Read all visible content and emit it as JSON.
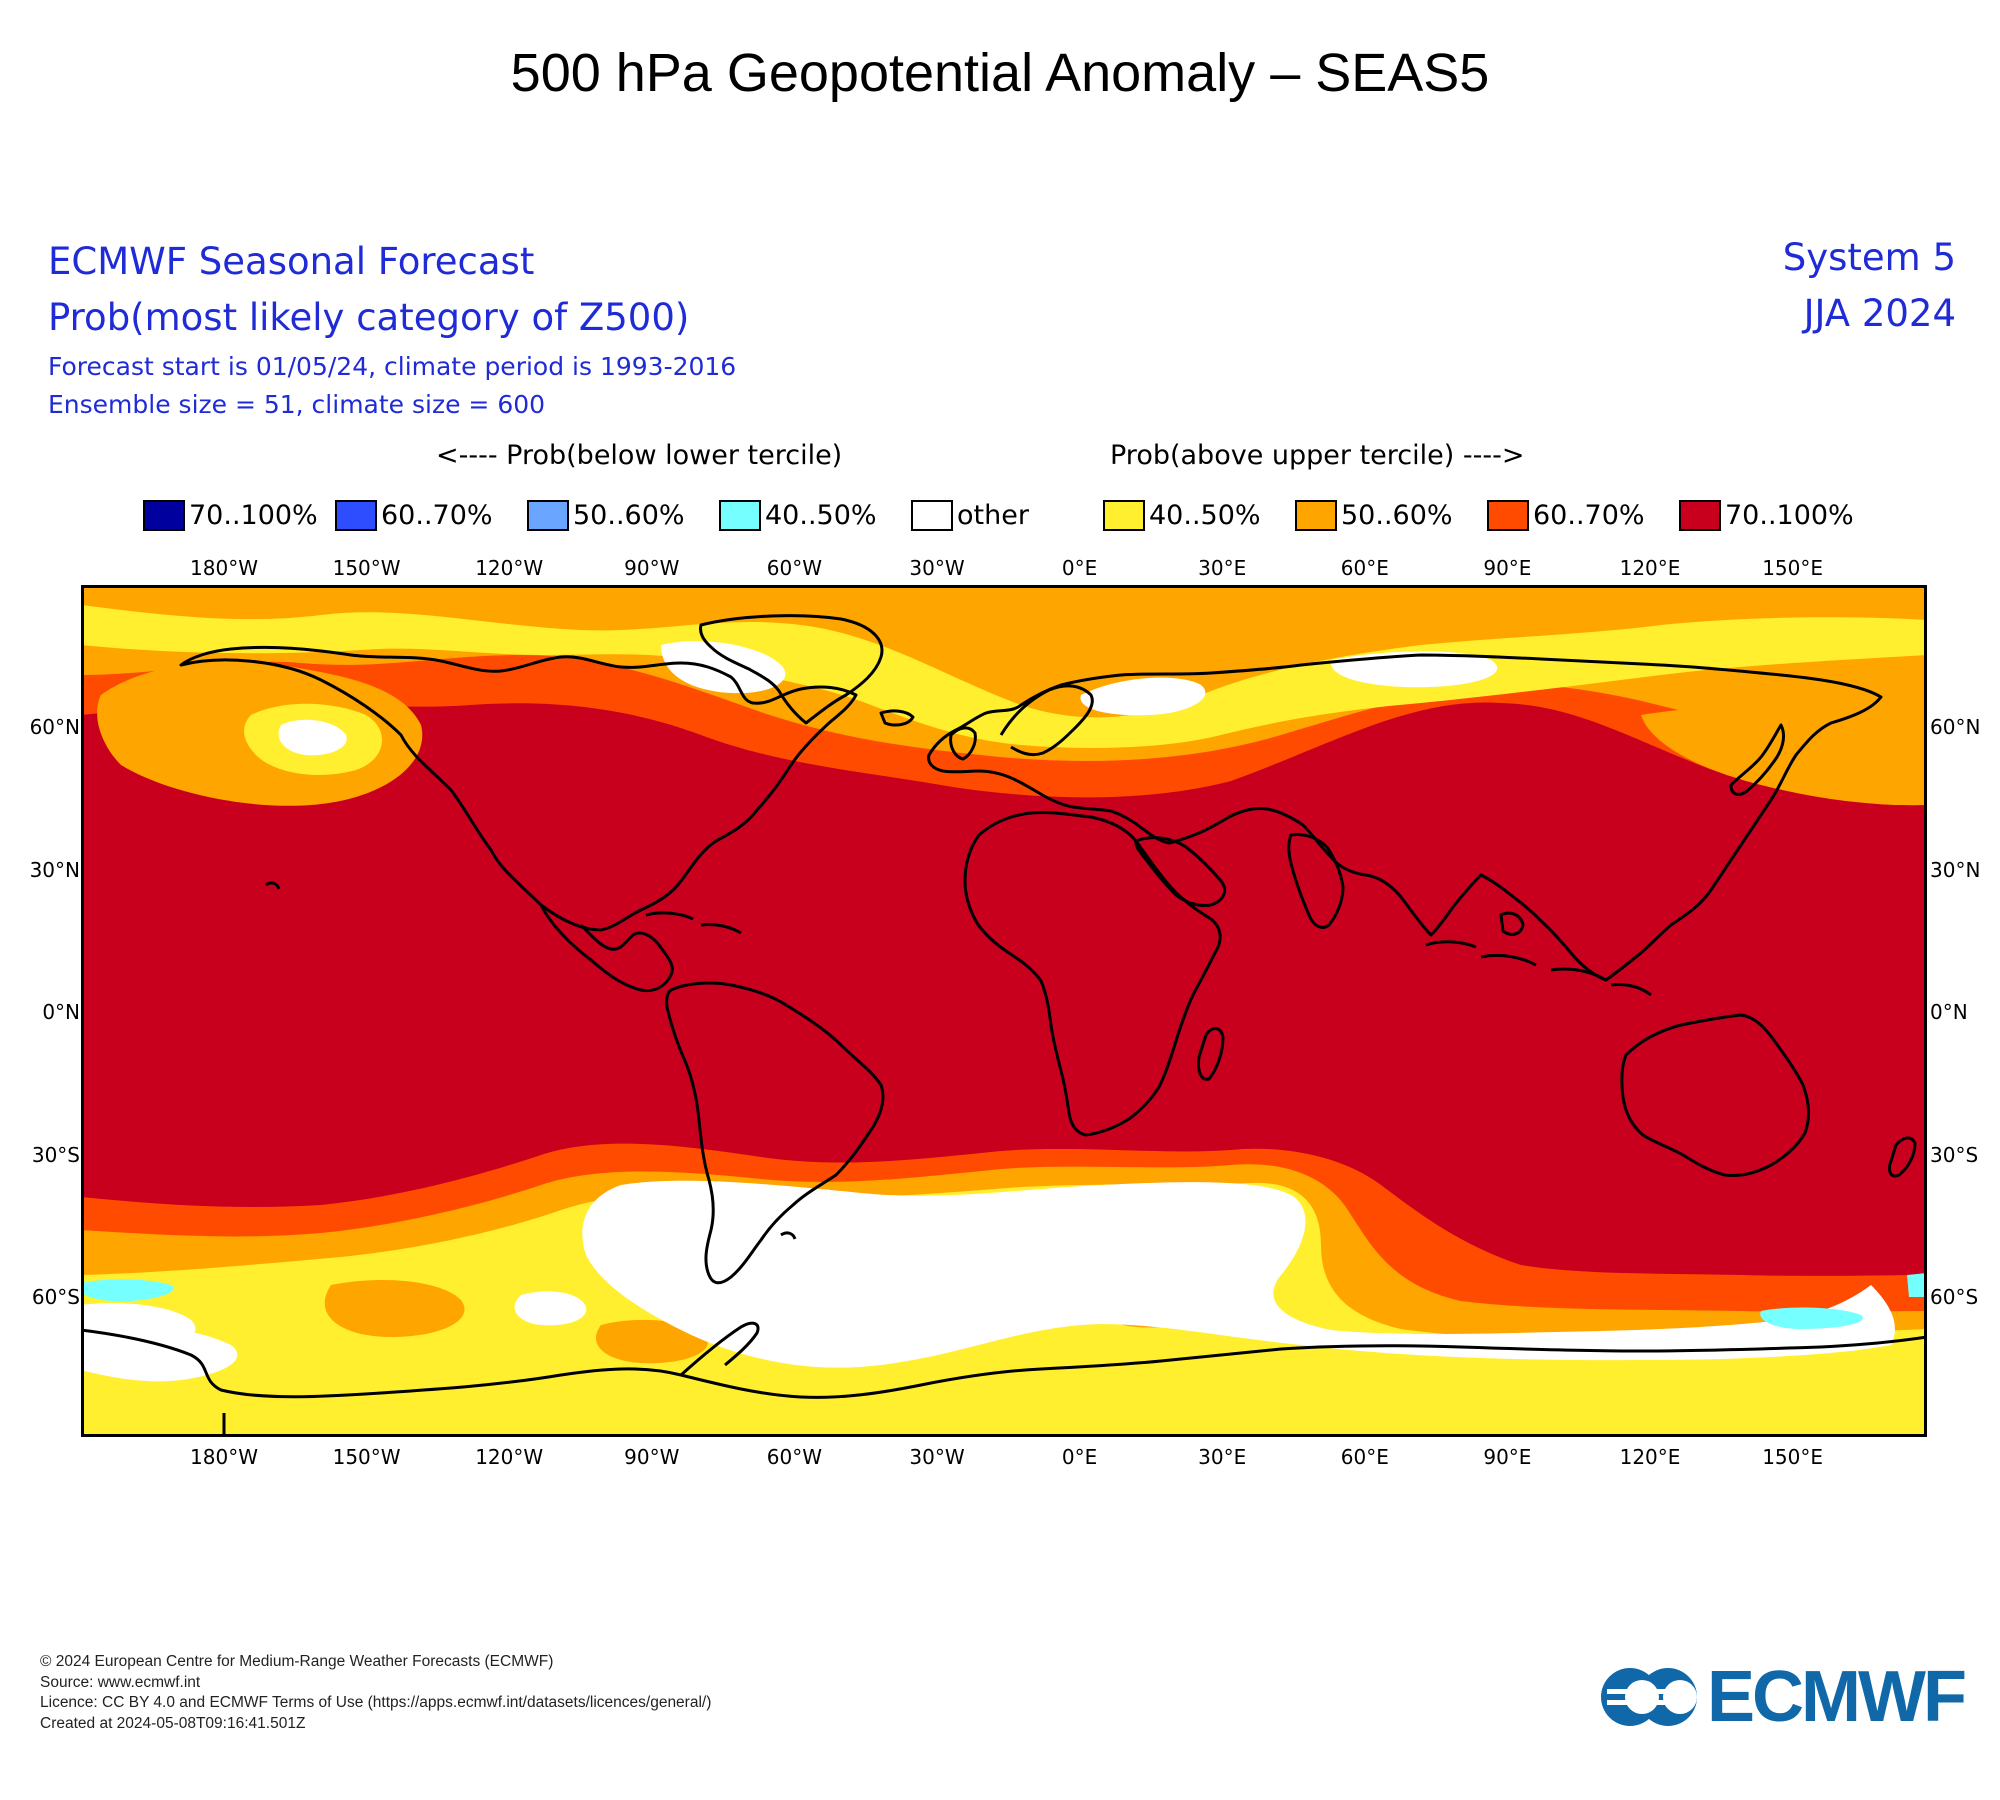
{
  "page_title": "500 hPa Geopotential Anomaly – SEAS5",
  "header": {
    "line1": "ECMWF Seasonal Forecast",
    "line2": "Prob(most likely category of Z500)",
    "line3": "Forecast start is 01/05/24, climate period is 1993-2016",
    "line4": "Ensemble size = 51, climate size = 600",
    "system": "System 5",
    "season": "JJA 2024"
  },
  "legend": {
    "below_caption": "<---- Prob(below lower tercile)",
    "above_caption": "Prob(above upper tercile) ---->",
    "items": [
      {
        "label": "70..100%",
        "color": "#00009e"
      },
      {
        "label": "60..70%",
        "color": "#2d4dff"
      },
      {
        "label": "50..60%",
        "color": "#6aa6ff"
      },
      {
        "label": "40..50%",
        "color": "#75ffff"
      },
      {
        "label": "other",
        "color": "#ffffff"
      },
      {
        "label": "40..50%",
        "color": "#ffef2e"
      },
      {
        "label": "50..60%",
        "color": "#ffa500"
      },
      {
        "label": "60..70%",
        "color": "#ff4b00"
      },
      {
        "label": "70..100%",
        "color": "#c8001e"
      }
    ]
  },
  "map": {
    "lon_labels": [
      "180°W",
      "150°W",
      "120°W",
      "90°W",
      "60°W",
      "30°W",
      "0°E",
      "30°E",
      "60°E",
      "90°E",
      "120°E",
      "150°E"
    ],
    "lat_labels": [
      "60°N",
      "30°N",
      "0°N",
      "30°S",
      "60°S"
    ],
    "colors": {
      "red": "#c8001e",
      "orange_red": "#ff4b00",
      "orange": "#ffa500",
      "yellow": "#ffef2e",
      "white": "#ffffff",
      "cyan": "#75ffff",
      "coast": "#000000"
    }
  },
  "footer": {
    "copyright": "© 2024 European Centre for Medium-Range Weather Forecasts (ECMWF)",
    "source": "Source: www.ecmwf.int",
    "licence": "Licence: CC BY 4.0 and ECMWF Terms of Use (https://apps.ecmwf.int/datasets/licences/general/)",
    "created": "Created at 2024-05-08T09:16:41.501Z"
  },
  "logo": {
    "text": "ECMWF",
    "color": "#1068a8"
  }
}
